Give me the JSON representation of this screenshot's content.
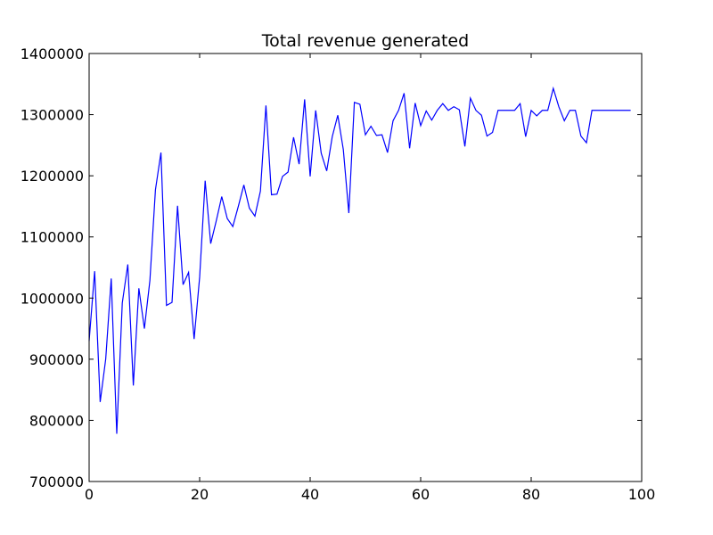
{
  "chart_data": {
    "type": "line",
    "title": "Total revenue generated",
    "xlabel": "",
    "ylabel": "",
    "xlim": [
      0,
      100
    ],
    "ylim": [
      700000,
      1400000
    ],
    "xticks": [
      0,
      20,
      40,
      60,
      80,
      100
    ],
    "yticks": [
      700000,
      800000,
      900000,
      1000000,
      1100000,
      1200000,
      1300000,
      1400000
    ],
    "grid": false,
    "series": [
      {
        "color": "#0000ff",
        "x": [
          0,
          1,
          2,
          3,
          4,
          5,
          6,
          7,
          8,
          9,
          10,
          11,
          12,
          13,
          14,
          15,
          16,
          17,
          18,
          19,
          20,
          21,
          22,
          23,
          24,
          25,
          26,
          27,
          28,
          29,
          30,
          31,
          32,
          33,
          34,
          35,
          36,
          37,
          38,
          39,
          40,
          41,
          42,
          43,
          44,
          45,
          46,
          47,
          48,
          49,
          50,
          51,
          52,
          53,
          54,
          55,
          56,
          57,
          58,
          59,
          60,
          61,
          62,
          63,
          64,
          65,
          66,
          67,
          68,
          69,
          70,
          71,
          72,
          73,
          74,
          75,
          76,
          77,
          78,
          79,
          80,
          81,
          82,
          83,
          84,
          85,
          86,
          87,
          88,
          89,
          90,
          91,
          92,
          93,
          94,
          95,
          96,
          97,
          98
        ],
        "values": [
          930000,
          1044000,
          830000,
          900000,
          1032000,
          778000,
          992000,
          1055000,
          857000,
          1016000,
          950000,
          1029000,
          1177000,
          1238000,
          988000,
          993000,
          1151000,
          1022000,
          1042000,
          933000,
          1034000,
          1192000,
          1089000,
          1126000,
          1166000,
          1130000,
          1117000,
          1150000,
          1185000,
          1147000,
          1134000,
          1175000,
          1315000,
          1169000,
          1170000,
          1199000,
          1206000,
          1263000,
          1219000,
          1325000,
          1199000,
          1307000,
          1237000,
          1208000,
          1264000,
          1299000,
          1243000,
          1139000,
          1320000,
          1317000,
          1267000,
          1281000,
          1266000,
          1267000,
          1238000,
          1290000,
          1307000,
          1335000,
          1245000,
          1319000,
          1282000,
          1306000,
          1291000,
          1307000,
          1318000,
          1307000,
          1313000,
          1308000,
          1248000,
          1327000,
          1307000,
          1299000,
          1265000,
          1271000,
          1307000,
          1307000,
          1307000,
          1307000,
          1318000,
          1264000,
          1307000,
          1298000,
          1307000,
          1307000,
          1343000,
          1313000,
          1290000,
          1307000,
          1307000,
          1265000,
          1254000,
          1307000,
          1307000,
          1307000,
          1307000,
          1307000,
          1307000,
          1307000,
          1307000
        ]
      }
    ]
  }
}
